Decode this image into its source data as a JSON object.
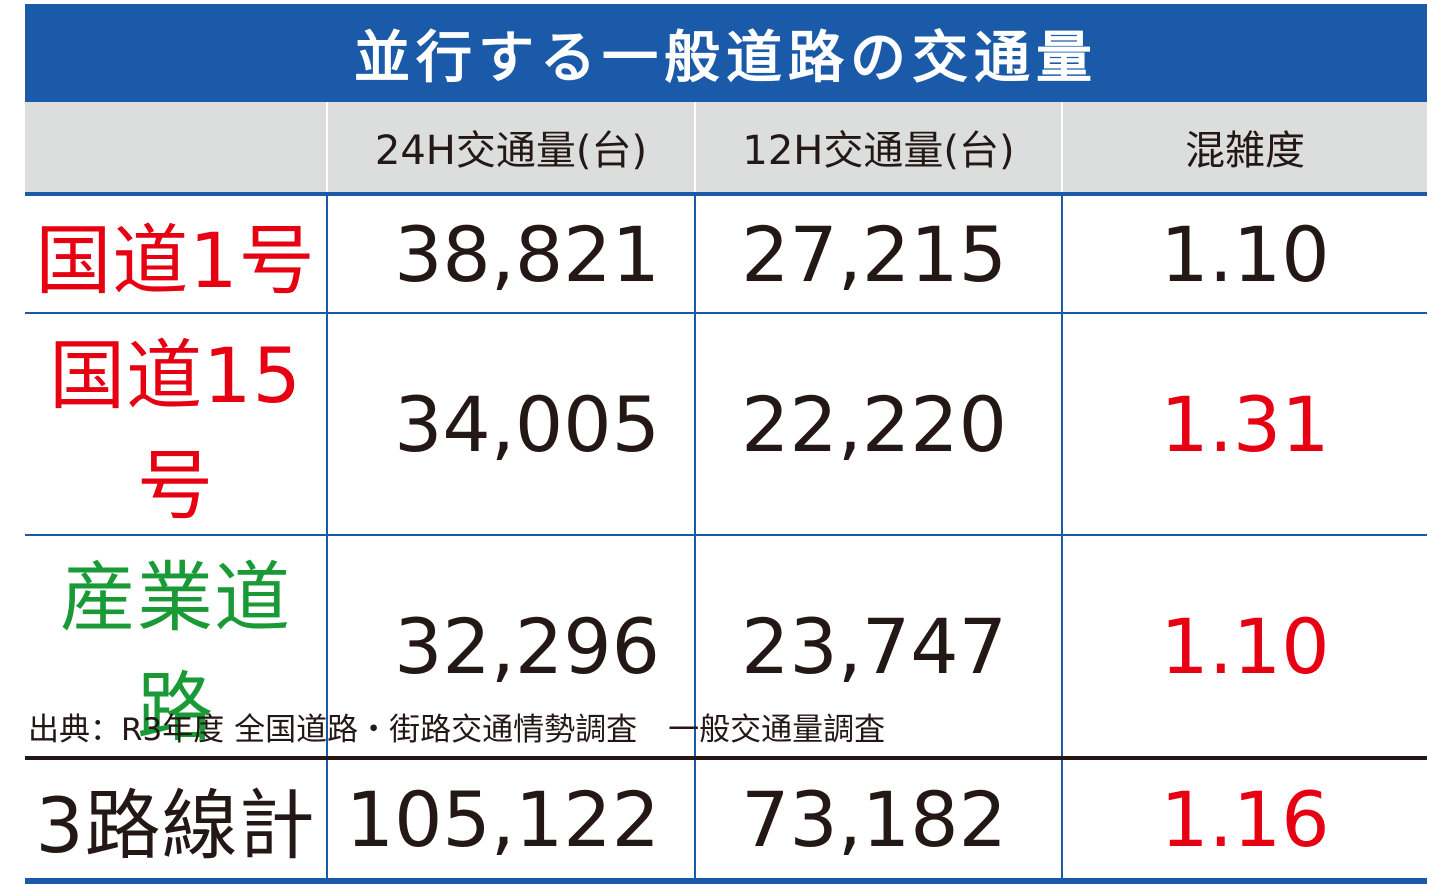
{
  "chart_data": {
    "type": "table",
    "title": "並行する一般道路の交通量",
    "columns": [
      "",
      "24H交通量(台)",
      "12H交通量(台)",
      "混雑度"
    ],
    "rows": [
      {
        "label": "国道1号",
        "traffic_24h": "38,821",
        "traffic_12h": "27,215",
        "congestion": "1.10",
        "label_color": "#e60012",
        "congestion_color": "#231815"
      },
      {
        "label": "国道15号",
        "traffic_24h": "34,005",
        "traffic_12h": "22,220",
        "congestion": "1.31",
        "label_color": "#e60012",
        "congestion_color": "#e60012"
      },
      {
        "label": "産業道路",
        "traffic_24h": "32,296",
        "traffic_12h": "23,747",
        "congestion": "1.10",
        "label_color": "#1a9a36",
        "congestion_color": "#e60012"
      }
    ],
    "total": {
      "label": "3路線計",
      "traffic_24h": "105,122",
      "traffic_12h": "73,182",
      "congestion": "1.16",
      "label_color": "#231815",
      "congestion_color": "#e60012"
    },
    "source": "出典：R3年度 全国道路・街路交通情勢調査　一般交通量調査"
  }
}
